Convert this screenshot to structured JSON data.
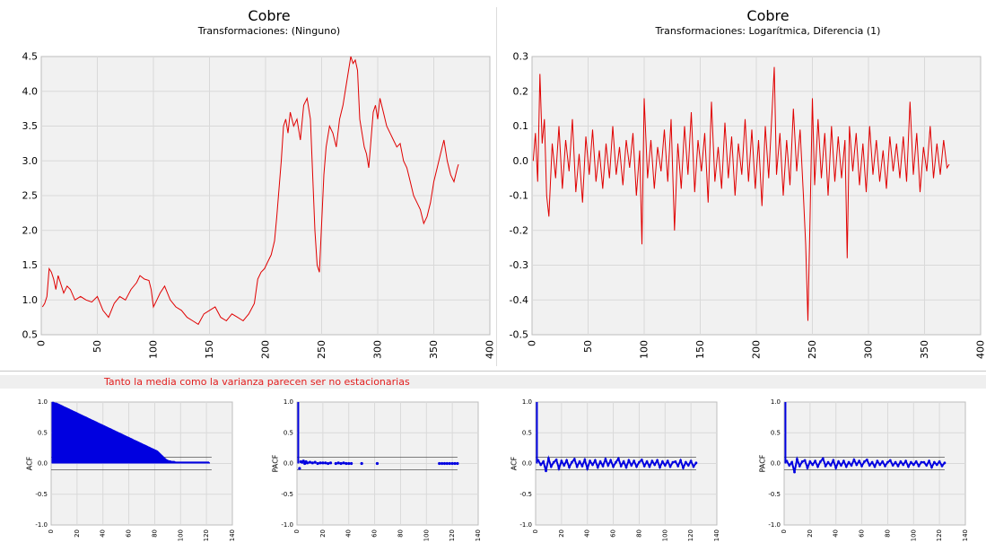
{
  "note": "Tanto la media como la varianza parecen ser no estacionarias",
  "chart_data": [
    {
      "type": "line",
      "title": "Cobre",
      "subtitle": "Transformaciones: (Ninguno)",
      "xlim": [
        0,
        400
      ],
      "ylim": [
        0.5,
        4.5
      ],
      "xticks": [
        "0",
        "50",
        "100",
        "150",
        "200",
        "250",
        "300",
        "350",
        "400"
      ],
      "yticks": [
        "0.5",
        "1.0",
        "1.5",
        "2.0",
        "2.5",
        "3.0",
        "3.5",
        "4.0",
        "4.5"
      ],
      "grid": true,
      "line_color": "#e00000",
      "series": [
        {
          "x": [
            1,
            3,
            5,
            7,
            9,
            11,
            13,
            15,
            17,
            20,
            23,
            26,
            30,
            35,
            40,
            45,
            50,
            55,
            60,
            65,
            70,
            75,
            80,
            85,
            88,
            92,
            96,
            98,
            100,
            103,
            106,
            110,
            115,
            120,
            125,
            130,
            135,
            140,
            145,
            150,
            155,
            160,
            165,
            170,
            175,
            180,
            185,
            190,
            193,
            196,
            199,
            202,
            205,
            208,
            210,
            212,
            214,
            216,
            218,
            220,
            222,
            225,
            228,
            231,
            234,
            237,
            240,
            242,
            244,
            246,
            248,
            250,
            252,
            254,
            257,
            260,
            263,
            266,
            269,
            272,
            274,
            276,
            278,
            280,
            282,
            284,
            286,
            288,
            290,
            292,
            294,
            296,
            298,
            300,
            302,
            305,
            308,
            311,
            314,
            317,
            320,
            323,
            326,
            329,
            332,
            335,
            338,
            341,
            344,
            347,
            350,
            353,
            356,
            359,
            362,
            365,
            368,
            371,
            372
          ],
          "values": [
            0.9,
            0.95,
            1.05,
            1.45,
            1.4,
            1.3,
            1.15,
            1.35,
            1.25,
            1.1,
            1.2,
            1.15,
            1.0,
            1.05,
            1.0,
            0.97,
            1.05,
            0.85,
            0.75,
            0.95,
            1.05,
            1.0,
            1.15,
            1.25,
            1.35,
            1.3,
            1.28,
            1.15,
            0.9,
            1.0,
            1.1,
            1.2,
            1.0,
            0.9,
            0.85,
            0.75,
            0.7,
            0.65,
            0.8,
            0.85,
            0.9,
            0.75,
            0.7,
            0.8,
            0.75,
            0.7,
            0.8,
            0.95,
            1.3,
            1.4,
            1.45,
            1.55,
            1.65,
            1.85,
            2.2,
            2.6,
            3.0,
            3.5,
            3.6,
            3.4,
            3.7,
            3.5,
            3.6,
            3.3,
            3.8,
            3.9,
            3.6,
            2.8,
            2.0,
            1.5,
            1.4,
            2.1,
            2.8,
            3.2,
            3.5,
            3.4,
            3.2,
            3.6,
            3.8,
            4.1,
            4.3,
            4.5,
            4.4,
            4.45,
            4.3,
            3.6,
            3.4,
            3.2,
            3.1,
            2.9,
            3.3,
            3.7,
            3.8,
            3.6,
            3.9,
            3.7,
            3.5,
            3.4,
            3.3,
            3.2,
            3.25,
            3.0,
            2.9,
            2.7,
            2.5,
            2.4,
            2.3,
            2.1,
            2.2,
            2.4,
            2.7,
            2.9,
            3.1,
            3.3,
            3.0,
            2.8,
            2.7,
            2.9,
            2.95
          ]
        }
      ]
    },
    {
      "type": "line",
      "title": "Cobre",
      "subtitle": "Transformaciones: Logarítmica, Diferencia (1)",
      "xlim": [
        0,
        400
      ],
      "ylim": [
        -0.5,
        0.3
      ],
      "xticks": [
        "0",
        "50",
        "100",
        "150",
        "200",
        "250",
        "300",
        "350",
        "400"
      ],
      "yticks": [
        "0.3",
        "0.2",
        "0.1",
        "0.0",
        "-0.1",
        "-0.2",
        "-0.3",
        "-0.4",
        "-0.5"
      ],
      "grid": true,
      "line_color": "#e00000",
      "series": [
        {
          "x": [
            1,
            3,
            5,
            7,
            9,
            11,
            13,
            15,
            18,
            21,
            24,
            27,
            30,
            33,
            36,
            39,
            42,
            45,
            48,
            51,
            54,
            57,
            60,
            63,
            66,
            69,
            72,
            75,
            78,
            81,
            84,
            87,
            90,
            93,
            96,
            98,
            100,
            103,
            106,
            109,
            112,
            115,
            118,
            121,
            124,
            127,
            130,
            133,
            136,
            139,
            142,
            145,
            148,
            151,
            154,
            157,
            160,
            163,
            166,
            169,
            172,
            175,
            178,
            181,
            184,
            187,
            190,
            193,
            196,
            199,
            202,
            205,
            208,
            211,
            214,
            216,
            218,
            221,
            224,
            227,
            230,
            233,
            236,
            239,
            242,
            244,
            246,
            248,
            250,
            252,
            255,
            258,
            261,
            264,
            267,
            270,
            273,
            276,
            279,
            281,
            283,
            286,
            289,
            292,
            295,
            298,
            301,
            304,
            307,
            310,
            313,
            316,
            319,
            322,
            325,
            328,
            331,
            334,
            337,
            340,
            343,
            346,
            349,
            352,
            355,
            358,
            361,
            364,
            367,
            370,
            372
          ],
          "values": [
            0.0,
            0.08,
            -0.06,
            0.25,
            0.05,
            0.12,
            -0.1,
            -0.16,
            0.05,
            -0.05,
            0.1,
            -0.08,
            0.06,
            -0.03,
            0.12,
            -0.09,
            0.02,
            -0.12,
            0.07,
            -0.04,
            0.09,
            -0.06,
            0.03,
            -0.08,
            0.05,
            -0.05,
            0.1,
            -0.04,
            0.04,
            -0.07,
            0.06,
            -0.02,
            0.08,
            -0.1,
            0.03,
            -0.24,
            0.18,
            -0.05,
            0.06,
            -0.08,
            0.04,
            -0.03,
            0.09,
            -0.06,
            0.12,
            -0.2,
            0.05,
            -0.08,
            0.1,
            -0.04,
            0.14,
            -0.09,
            0.06,
            -0.03,
            0.08,
            -0.12,
            0.17,
            -0.06,
            0.04,
            -0.08,
            0.11,
            -0.05,
            0.07,
            -0.1,
            0.05,
            -0.04,
            0.12,
            -0.06,
            0.09,
            -0.08,
            0.06,
            -0.13,
            0.1,
            -0.05,
            0.14,
            0.27,
            -0.04,
            0.08,
            -0.1,
            0.06,
            -0.07,
            0.15,
            -0.03,
            0.09,
            -0.1,
            -0.24,
            -0.46,
            -0.15,
            0.18,
            -0.07,
            0.12,
            -0.05,
            0.08,
            -0.1,
            0.1,
            -0.06,
            0.07,
            -0.05,
            0.06,
            -0.28,
            0.1,
            -0.03,
            0.08,
            -0.07,
            0.05,
            -0.09,
            0.1,
            -0.04,
            0.06,
            -0.06,
            0.03,
            -0.08,
            0.07,
            -0.03,
            0.05,
            -0.05,
            0.07,
            -0.06,
            0.17,
            -0.04,
            0.08,
            -0.09,
            0.04,
            -0.03,
            0.1,
            -0.05,
            0.05,
            -0.04,
            0.06,
            -0.02,
            -0.01
          ]
        }
      ]
    },
    {
      "type": "bar",
      "ylabel": "ACF",
      "xlim": [
        0,
        140
      ],
      "ylim": [
        -1.0,
        1.0
      ],
      "xticks": [
        "0",
        "20",
        "40",
        "60",
        "80",
        "100",
        "120",
        "140"
      ],
      "yticks": [
        "1.0",
        "0.5",
        "0.0",
        "-0.5",
        "-1.0"
      ],
      "bands": [
        0.1,
        -0.1
      ],
      "color": "#0000e0",
      "values": [
        1.0,
        0.99,
        0.98,
        0.98,
        0.97,
        0.96,
        0.95,
        0.94,
        0.93,
        0.92,
        0.91,
        0.9,
        0.89,
        0.88,
        0.87,
        0.86,
        0.85,
        0.84,
        0.83,
        0.82,
        0.81,
        0.8,
        0.79,
        0.78,
        0.77,
        0.76,
        0.75,
        0.74,
        0.73,
        0.72,
        0.71,
        0.7,
        0.69,
        0.68,
        0.67,
        0.66,
        0.65,
        0.64,
        0.63,
        0.62,
        0.61,
        0.6,
        0.59,
        0.58,
        0.57,
        0.56,
        0.55,
        0.54,
        0.53,
        0.52,
        0.51,
        0.5,
        0.49,
        0.48,
        0.47,
        0.46,
        0.45,
        0.44,
        0.43,
        0.42,
        0.41,
        0.4,
        0.39,
        0.38,
        0.37,
        0.36,
        0.35,
        0.34,
        0.33,
        0.32,
        0.31,
        0.3,
        0.29,
        0.28,
        0.27,
        0.26,
        0.25,
        0.24,
        0.23,
        0.22,
        0.21,
        0.2,
        0.18,
        0.16,
        0.14,
        0.12,
        0.1,
        0.08,
        0.06,
        0.05,
        0.04,
        0.04,
        0.03,
        0.03,
        0.03,
        0.02,
        0.02,
        0.02,
        0.02,
        0.02,
        0.02,
        0.02,
        0.02,
        0.02,
        0.02,
        0.02,
        0.02,
        0.02,
        0.02,
        0.02,
        0.02,
        0.02,
        0.02,
        0.02,
        0.02,
        0.02,
        0.02,
        0.02,
        0.02,
        0.02,
        0.02,
        0.02
      ]
    },
    {
      "type": "scatter",
      "ylabel": "PACF",
      "xlim": [
        0,
        140
      ],
      "ylim": [
        -1.0,
        1.0
      ],
      "xticks": [
        "0",
        "20",
        "40",
        "60",
        "80",
        "100",
        "120",
        "140"
      ],
      "yticks": [
        "1.0",
        "0.5",
        "0.0",
        "-0.5",
        "-1.0"
      ],
      "bands": [
        0.1,
        -0.1
      ],
      "color": "#0000e0",
      "spike": {
        "x": 1,
        "value": 1.0
      },
      "x": [
        2,
        3,
        4,
        5,
        6,
        7,
        8,
        10,
        12,
        14,
        16,
        18,
        20,
        22,
        24,
        26,
        30,
        32,
        34,
        36,
        38,
        40,
        42,
        50,
        62,
        110,
        112,
        114,
        116,
        118,
        120,
        122,
        124
      ],
      "values": [
        -0.08,
        0.03,
        0.02,
        0.04,
        0.0,
        0.03,
        0.01,
        0.02,
        0.01,
        0.02,
        0.0,
        0.01,
        0.01,
        0.01,
        0.0,
        0.01,
        0.0,
        0.01,
        0.0,
        0.01,
        0.0,
        0.0,
        0.0,
        0.0,
        0.0,
        0.0,
        0.0,
        0.0,
        0.0,
        0.0,
        0.0,
        0.0,
        0.0
      ]
    },
    {
      "type": "line",
      "ylabel": "ACF",
      "xlim": [
        0,
        140
      ],
      "ylim": [
        -1.0,
        1.0
      ],
      "xticks": [
        "0",
        "20",
        "40",
        "60",
        "80",
        "100",
        "120",
        "140"
      ],
      "yticks": [
        "1.0",
        "0.5",
        "0.0",
        "-0.5",
        "-1.0"
      ],
      "bands": [
        0.1,
        -0.1
      ],
      "color": "#0000e0",
      "spike": {
        "x": 1,
        "value": 1.0
      },
      "x": [
        2,
        4,
        6,
        8,
        10,
        12,
        14,
        16,
        18,
        20,
        22,
        24,
        26,
        28,
        30,
        32,
        34,
        36,
        38,
        40,
        42,
        44,
        46,
        48,
        50,
        52,
        54,
        56,
        58,
        60,
        62,
        64,
        66,
        68,
        70,
        72,
        74,
        76,
        78,
        80,
        82,
        84,
        86,
        88,
        90,
        92,
        94,
        96,
        98,
        100,
        102,
        104,
        106,
        108,
        110,
        112,
        114,
        116,
        118,
        120,
        122,
        124
      ],
      "values": [
        0.05,
        -0.02,
        0.03,
        -0.12,
        0.08,
        -0.05,
        0.02,
        0.06,
        -0.08,
        0.04,
        -0.03,
        0.05,
        -0.06,
        0.02,
        0.07,
        -0.05,
        0.03,
        -0.04,
        0.06,
        -0.08,
        0.04,
        -0.02,
        0.05,
        -0.06,
        0.03,
        -0.04,
        0.07,
        -0.03,
        0.05,
        -0.05,
        0.02,
        0.08,
        -0.04,
        0.03,
        -0.06,
        0.05,
        -0.03,
        0.04,
        -0.05,
        0.02,
        0.06,
        -0.04,
        0.03,
        -0.05,
        0.04,
        -0.02,
        0.05,
        -0.06,
        0.03,
        -0.03,
        0.04,
        -0.05,
        0.02,
        0.03,
        -0.04,
        0.05,
        -0.07,
        0.02,
        -0.03,
        0.04,
        -0.05,
        0.01
      ]
    },
    {
      "type": "line",
      "ylabel": "PACF",
      "xlim": [
        0,
        140
      ],
      "ylim": [
        -1.0,
        1.0
      ],
      "xticks": [
        "0",
        "20",
        "40",
        "60",
        "80",
        "100",
        "120",
        "140"
      ],
      "yticks": [
        "1.0",
        "0.5",
        "0.0",
        "-0.5",
        "-1.0"
      ],
      "bands": [
        0.1,
        -0.1
      ],
      "color": "#0000e0",
      "spike": {
        "x": 1,
        "value": 1.0
      },
      "x": [
        2,
        4,
        6,
        8,
        10,
        12,
        14,
        16,
        18,
        20,
        22,
        24,
        26,
        28,
        30,
        32,
        34,
        36,
        38,
        40,
        42,
        44,
        46,
        48,
        50,
        52,
        54,
        56,
        58,
        60,
        62,
        64,
        66,
        68,
        70,
        72,
        74,
        76,
        78,
        80,
        82,
        84,
        86,
        88,
        90,
        92,
        94,
        96,
        98,
        100,
        102,
        104,
        106,
        108,
        110,
        112,
        114,
        116,
        118,
        120,
        122,
        124
      ],
      "values": [
        0.04,
        -0.03,
        0.02,
        -0.14,
        0.07,
        -0.04,
        0.03,
        0.05,
        -0.07,
        0.03,
        -0.02,
        0.04,
        -0.05,
        0.03,
        0.08,
        -0.04,
        0.02,
        -0.03,
        0.05,
        -0.07,
        0.03,
        -0.03,
        0.04,
        -0.05,
        0.02,
        -0.03,
        0.06,
        -0.02,
        0.04,
        -0.04,
        0.03,
        0.06,
        -0.03,
        0.02,
        -0.05,
        0.04,
        -0.02,
        0.03,
        -0.04,
        0.02,
        0.05,
        -0.03,
        0.02,
        -0.04,
        0.03,
        -0.02,
        0.04,
        -0.05,
        0.02,
        -0.02,
        0.03,
        -0.04,
        0.02,
        0.02,
        -0.03,
        0.04,
        -0.06,
        0.02,
        -0.02,
        0.03,
        -0.04,
        0.01
      ]
    }
  ]
}
